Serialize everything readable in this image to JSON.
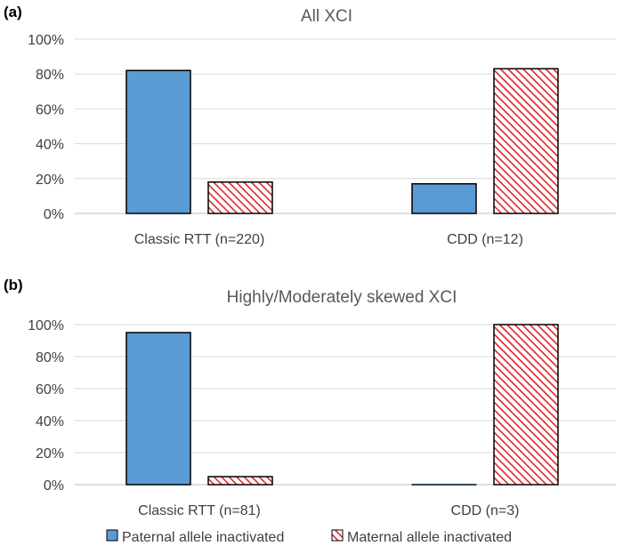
{
  "chart_data": [
    {
      "type": "bar",
      "panel_label": "(a)",
      "title": "All XCI",
      "categories": [
        "Classic RTT (n=220)",
        "CDD (n=12)"
      ],
      "series": [
        {
          "name": "Paternal allele inactivated",
          "values": [
            82,
            17
          ]
        },
        {
          "name": "Maternal allele inactivated",
          "values": [
            18,
            83
          ]
        }
      ],
      "ylim": [
        0,
        100
      ],
      "yticks": [
        "0%",
        "20%",
        "40%",
        "60%",
        "80%",
        "100%"
      ],
      "grid": true,
      "xlabel": "",
      "ylabel": ""
    },
    {
      "type": "bar",
      "panel_label": "(b)",
      "title": "Highly/Moderately skewed XCI",
      "categories": [
        "Classic RTT (n=81)",
        "CDD (n=3)"
      ],
      "series": [
        {
          "name": "Paternal allele inactivated",
          "values": [
            95,
            0
          ]
        },
        {
          "name": "Maternal allele inactivated",
          "values": [
            5,
            100
          ]
        }
      ],
      "ylim": [
        0,
        100
      ],
      "yticks": [
        "0%",
        "20%",
        "40%",
        "60%",
        "80%",
        "100%"
      ],
      "grid": true,
      "xlabel": "",
      "ylabel": ""
    }
  ],
  "legend": {
    "position": "bottom",
    "items": [
      {
        "label": "Paternal allele inactivated",
        "style": "solid"
      },
      {
        "label": "Maternal allele inactivated",
        "style": "hatched"
      }
    ]
  },
  "colors": {
    "paternal": "#5b9bd5",
    "maternal_stripe": "#e0252a",
    "outline": "#000000"
  }
}
